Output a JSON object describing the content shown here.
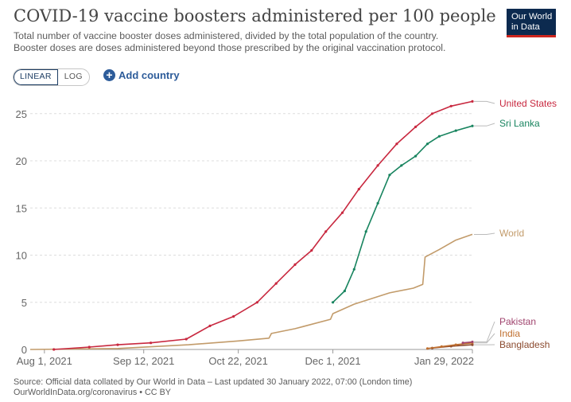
{
  "header": {
    "title": "COVID-19 vaccine boosters administered per 100 people",
    "subtitle_line1": "Total number of vaccine booster doses administered, divided by the total population of the country.",
    "subtitle_line2": "Booster doses are doses administered beyond those prescribed by the original vaccination protocol.",
    "logo_line1": "Our World",
    "logo_line2": "in Data"
  },
  "controls": {
    "linear_label": "LINEAR",
    "log_label": "LOG",
    "add_country_label": "Add country",
    "selected_scale": "linear"
  },
  "footer": {
    "line1": "Source: Official data collated by Our World in Data – Last updated 30 January 2022, 07:00 (London time)",
    "line2": "OurWorldInData.org/coronavirus • CC BY"
  },
  "chart_data": {
    "type": "line",
    "title": "COVID-19 vaccine boosters administered per 100 people",
    "xlabel": "",
    "ylabel": "",
    "x_range": [
      "2021-07-26",
      "2022-01-29"
    ],
    "ylim": [
      0,
      26.5
    ],
    "y_ticks": [
      0,
      5,
      10,
      15,
      20,
      25
    ],
    "x_ticks": [
      {
        "date": "2021-08-01",
        "label": "Aug 1, 2021"
      },
      {
        "date": "2021-09-12",
        "label": "Sep 12, 2021"
      },
      {
        "date": "2021-10-22",
        "label": "Oct 22, 2021"
      },
      {
        "date": "2021-12-01",
        "label": "Dec 1, 2021"
      },
      {
        "date": "2022-01-29",
        "label": "Jan 29, 2022"
      }
    ],
    "grid": "horizontal dashed",
    "legend": "labels at line ends (right)",
    "series": [
      {
        "name": "United States",
        "color": "#c8283f",
        "marker": true,
        "points": [
          [
            "2021-08-05",
            0.0
          ],
          [
            "2021-08-20",
            0.25
          ],
          [
            "2021-09-01",
            0.5
          ],
          [
            "2021-09-15",
            0.7
          ],
          [
            "2021-09-30",
            1.1
          ],
          [
            "2021-10-10",
            2.5
          ],
          [
            "2021-10-20",
            3.5
          ],
          [
            "2021-10-30",
            5.0
          ],
          [
            "2021-11-07",
            7.0
          ],
          [
            "2021-11-15",
            9.0
          ],
          [
            "2021-11-22",
            10.5
          ],
          [
            "2021-11-28",
            12.5
          ],
          [
            "2021-12-05",
            14.5
          ],
          [
            "2021-12-12",
            17.0
          ],
          [
            "2021-12-20",
            19.5
          ],
          [
            "2021-12-28",
            21.8
          ],
          [
            "2022-01-05",
            23.6
          ],
          [
            "2022-01-12",
            25.0
          ],
          [
            "2022-01-20",
            25.8
          ],
          [
            "2022-01-29",
            26.3
          ]
        ]
      },
      {
        "name": "Sri Lanka",
        "color": "#18845f",
        "marker": true,
        "points": [
          [
            "2021-12-01",
            5.0
          ],
          [
            "2021-12-06",
            6.2
          ],
          [
            "2021-12-10",
            8.5
          ],
          [
            "2021-12-15",
            12.5
          ],
          [
            "2021-12-20",
            15.5
          ],
          [
            "2021-12-25",
            18.5
          ],
          [
            "2021-12-30",
            19.5
          ],
          [
            "2022-01-05",
            20.5
          ],
          [
            "2022-01-10",
            21.8
          ],
          [
            "2022-01-15",
            22.6
          ],
          [
            "2022-01-22",
            23.2
          ],
          [
            "2022-01-29",
            23.7
          ]
        ]
      },
      {
        "name": "World",
        "color": "#c29b6a",
        "marker": false,
        "points": [
          [
            "2021-07-26",
            0.0
          ],
          [
            "2021-09-01",
            0.1
          ],
          [
            "2021-10-01",
            0.5
          ],
          [
            "2021-10-22",
            0.9
          ],
          [
            "2021-11-04",
            1.2
          ],
          [
            "2021-11-05",
            1.7
          ],
          [
            "2021-11-15",
            2.2
          ],
          [
            "2021-11-30",
            3.2
          ],
          [
            "2021-12-01",
            3.8
          ],
          [
            "2021-12-10",
            4.8
          ],
          [
            "2021-12-25",
            6.0
          ],
          [
            "2022-01-04",
            6.5
          ],
          [
            "2022-01-08",
            6.9
          ],
          [
            "2022-01-09",
            9.8
          ],
          [
            "2022-01-15",
            10.6
          ],
          [
            "2022-01-22",
            11.6
          ],
          [
            "2022-01-29",
            12.2
          ]
        ]
      },
      {
        "name": "Pakistan",
        "color": "#a0446e",
        "marker": true,
        "points": [
          [
            "2022-01-25",
            0.7
          ],
          [
            "2022-01-29",
            0.8
          ]
        ]
      },
      {
        "name": "India",
        "color": "#c07030",
        "marker": true,
        "points": [
          [
            "2022-01-10",
            0.1
          ],
          [
            "2022-01-16",
            0.3
          ],
          [
            "2022-01-22",
            0.5
          ],
          [
            "2022-01-29",
            0.7
          ]
        ]
      },
      {
        "name": "Bangladesh",
        "color": "#8b4a2e",
        "marker": true,
        "points": [
          [
            "2022-01-12",
            0.15
          ],
          [
            "2022-01-20",
            0.35
          ],
          [
            "2022-01-29",
            0.5
          ]
        ]
      }
    ],
    "end_labels": [
      {
        "series": "United States",
        "text": "United States"
      },
      {
        "series": "Sri Lanka",
        "text": "Sri Lanka"
      },
      {
        "series": "World",
        "text": "World"
      },
      {
        "series": "Pakistan",
        "text": "Pakistan"
      },
      {
        "series": "India",
        "text": "India"
      },
      {
        "series": "Bangladesh",
        "text": "Bangladesh"
      }
    ]
  }
}
